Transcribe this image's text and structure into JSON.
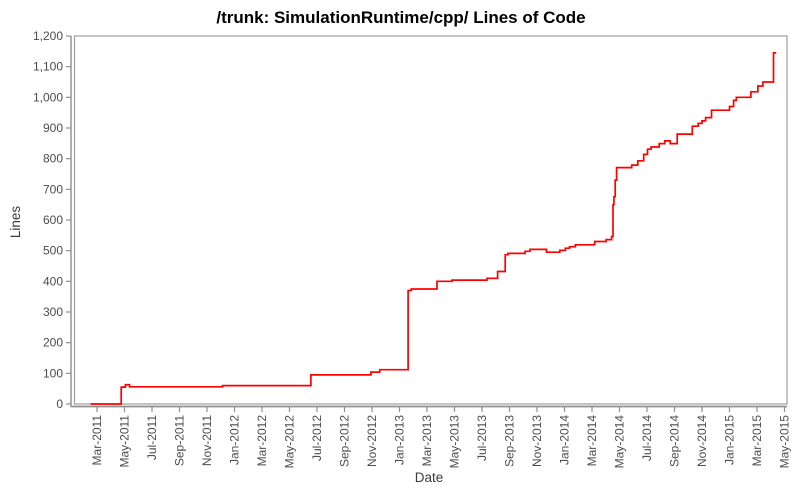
{
  "title": "/trunk: SimulationRuntime/cpp/ Lines of Code",
  "axes": {
    "x_label": "Date",
    "y_label": "Lines",
    "x_tick_labels": [
      "Mar-2011",
      "May-2011",
      "Jul-2011",
      "Sep-2011",
      "Nov-2011",
      "Jan-2012",
      "Mar-2012",
      "May-2012",
      "Jul-2012",
      "Sep-2012",
      "Nov-2012",
      "Jan-2013",
      "Mar-2013",
      "May-2013",
      "Jul-2013",
      "Sep-2013",
      "Nov-2013",
      "Jan-2014",
      "Mar-2014",
      "May-2014",
      "Jul-2014",
      "Sep-2014",
      "Nov-2014",
      "Jan-2015",
      "Mar-2015",
      "May-2015"
    ],
    "y_tick_labels": [
      "0",
      "100",
      "200",
      "300",
      "400",
      "500",
      "600",
      "700",
      "800",
      "900",
      "1,000",
      "1,100",
      "1,200"
    ],
    "y_tick_values": [
      0,
      100,
      200,
      300,
      400,
      500,
      600,
      700,
      800,
      900,
      1000,
      1100,
      1200
    ]
  },
  "colors": {
    "line": "#ff0000",
    "axis_line": "#8f8f8f",
    "plot_border": "#9c9c9c",
    "tick_text": "#4d4d4d",
    "title_text": "#000000",
    "background": "#ffffff"
  },
  "chart_data": {
    "type": "line",
    "line_style": "step-after",
    "title": "/trunk: SimulationRuntime/cpp/ Lines of Code",
    "xlabel": "Date",
    "ylabel": "Lines",
    "ylim": [
      0,
      1200
    ],
    "x_tick_interval_months": 2,
    "x_first_tick": "Mar-2011",
    "x_last_tick": "May-2015",
    "grid": false,
    "legend": "none",
    "series_name": "Lines of Code",
    "points": [
      [
        "2011-02-17",
        0
      ],
      [
        "2011-04-24",
        55
      ],
      [
        "2011-05-03",
        63
      ],
      [
        "2011-05-12",
        56
      ],
      [
        "2011-12-05",
        60
      ],
      [
        "2012-06-18",
        95
      ],
      [
        "2012-10-29",
        104
      ],
      [
        "2012-11-18",
        112
      ],
      [
        "2013-01-20",
        370
      ],
      [
        "2013-01-27",
        375
      ],
      [
        "2013-03-23",
        400
      ],
      [
        "2013-04-26",
        404
      ],
      [
        "2013-07-12",
        410
      ],
      [
        "2013-08-05",
        432
      ],
      [
        "2013-08-22",
        487
      ],
      [
        "2013-08-28",
        491
      ],
      [
        "2013-10-05",
        498
      ],
      [
        "2013-10-16",
        504
      ],
      [
        "2013-11-22",
        495
      ],
      [
        "2013-12-21",
        501
      ],
      [
        "2014-01-03",
        508
      ],
      [
        "2014-01-12",
        513
      ],
      [
        "2014-01-25",
        519
      ],
      [
        "2014-03-07",
        530
      ],
      [
        "2014-04-02",
        536
      ],
      [
        "2014-04-14",
        546
      ],
      [
        "2014-04-17",
        650
      ],
      [
        "2014-04-19",
        676
      ],
      [
        "2014-04-22",
        730
      ],
      [
        "2014-04-25",
        771
      ],
      [
        "2014-05-28",
        779
      ],
      [
        "2014-06-11",
        793
      ],
      [
        "2014-06-24",
        814
      ],
      [
        "2014-07-02",
        831
      ],
      [
        "2014-07-10",
        838
      ],
      [
        "2014-07-28",
        849
      ],
      [
        "2014-08-10",
        858
      ],
      [
        "2014-08-22",
        849
      ],
      [
        "2014-09-07",
        880
      ],
      [
        "2014-10-10",
        906
      ],
      [
        "2014-10-23",
        915
      ],
      [
        "2014-11-01",
        923
      ],
      [
        "2014-11-09",
        934
      ],
      [
        "2014-11-22",
        958
      ],
      [
        "2015-01-01",
        970
      ],
      [
        "2015-01-10",
        990
      ],
      [
        "2015-01-16",
        1000
      ],
      [
        "2015-02-18",
        1018
      ],
      [
        "2015-03-03",
        1037
      ],
      [
        "2015-03-14",
        1050
      ],
      [
        "2015-04-07",
        1145
      ],
      [
        "2015-04-13",
        1145
      ]
    ]
  }
}
